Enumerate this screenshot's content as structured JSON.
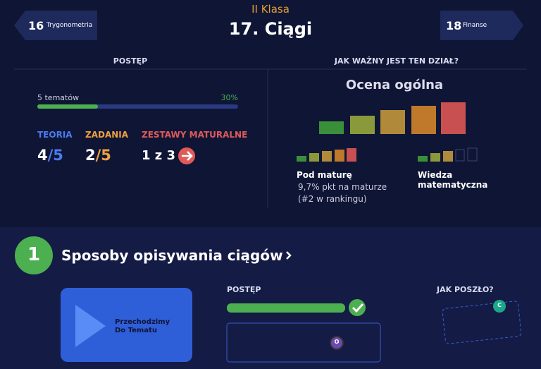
{
  "header": {
    "prev": {
      "number": "16",
      "label": "Trygonometria"
    },
    "class": "II Klasa",
    "title": "17. Ciągi",
    "next": {
      "number": "18",
      "label": "Finanse"
    }
  },
  "progress": {
    "heading": "POSTĘP",
    "topics": "5 tematów",
    "percent": {
      "value": 30,
      "label": "30%"
    },
    "stats": [
      {
        "label": "TEORIA",
        "done": "4",
        "total": "/5"
      },
      {
        "label": "ZADANIA",
        "done": "2",
        "total": "/5"
      },
      {
        "label": "ZESTAWY MATURALNE",
        "done": "1 z 3"
      }
    ]
  },
  "importance": {
    "heading": "JAK WAŻNY JEST TEN DZIAŁ?",
    "overall": "Ocena ogólna",
    "matura": {
      "title": "Pod maturę",
      "detail": "9,7% pkt na maturze",
      "rank": "(#2 w rankingu)"
    },
    "knowledge": {
      "title": "Wiedza matematyczna"
    }
  },
  "section": {
    "number": "1",
    "title": "Sposoby opisywania ciągów",
    "video": "Przechodzimy Do Tematu",
    "progress_heading": "POSTĘP",
    "feedback": "JAK POSZŁO?",
    "avatar_progress": "O",
    "avatar_feedback": "C"
  }
}
